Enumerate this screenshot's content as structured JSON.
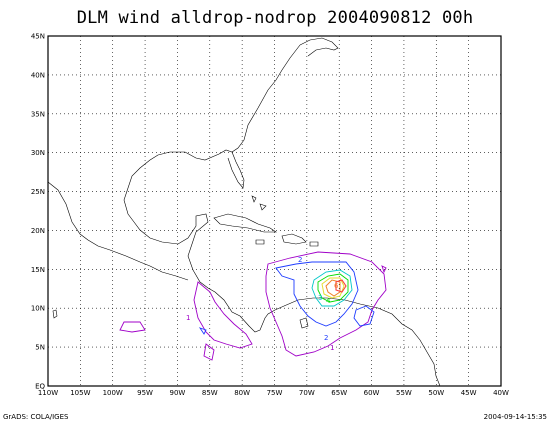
{
  "title": "DLM wind alldrop-nodrop 2004090812 00h",
  "footer": {
    "left": "GrADS: COLA/IGES",
    "right": "2004-09-14-15:35"
  },
  "map": {
    "lat_range": [
      0,
      45
    ],
    "lon_range": [
      -110,
      -40
    ],
    "lat_tick_labels": [
      "EQ",
      "5N",
      "10N",
      "15N",
      "20N",
      "25N",
      "30N",
      "35N",
      "40N",
      "45N"
    ],
    "lon_tick_labels": [
      "110W",
      "105W",
      "100W",
      "95W",
      "90W",
      "85W",
      "80W",
      "75W",
      "70W",
      "65W",
      "60W",
      "55W",
      "50W",
      "45W",
      "40W"
    ],
    "grid": true,
    "grid_style": "dotted"
  },
  "contours": {
    "colors": {
      "1": "#a000c8",
      "2": "#1e3cff",
      "3": "#00c8c8",
      "4": "#00dc00",
      "5": "#e6dc32",
      "6": "#f08228",
      "7": "#fa3c3c"
    },
    "labels": [
      "1",
      "2",
      "3",
      "4",
      "5",
      "6",
      "7"
    ]
  }
}
